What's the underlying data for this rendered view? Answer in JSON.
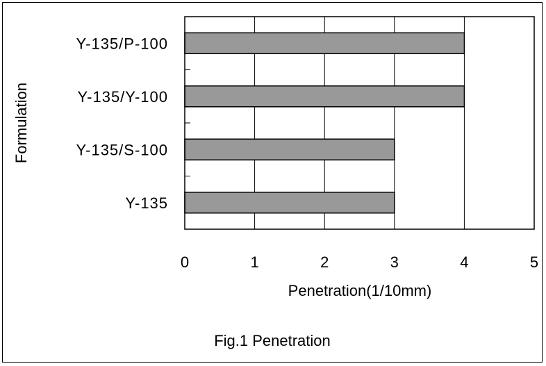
{
  "chart_data": {
    "type": "bar",
    "orientation": "horizontal",
    "categories": [
      "Y-135/P-100",
      "Y-135/Y-100",
      "Y-135/S-100",
      "Y-135"
    ],
    "values": [
      4,
      4,
      3,
      3
    ],
    "xlabel": "Penetration(1/10mm)",
    "ylabel": "Formulation",
    "xlim": [
      0,
      5
    ],
    "xticks": [
      "0",
      "1",
      "2",
      "3",
      "4",
      "5"
    ],
    "grid": "vertical",
    "legend": "none",
    "caption": "Fig.1 Penetration",
    "colors": {
      "bar_fill": "#999999",
      "bar_stroke": "#000000",
      "grid": "#000000",
      "background": "#ffffff"
    }
  }
}
